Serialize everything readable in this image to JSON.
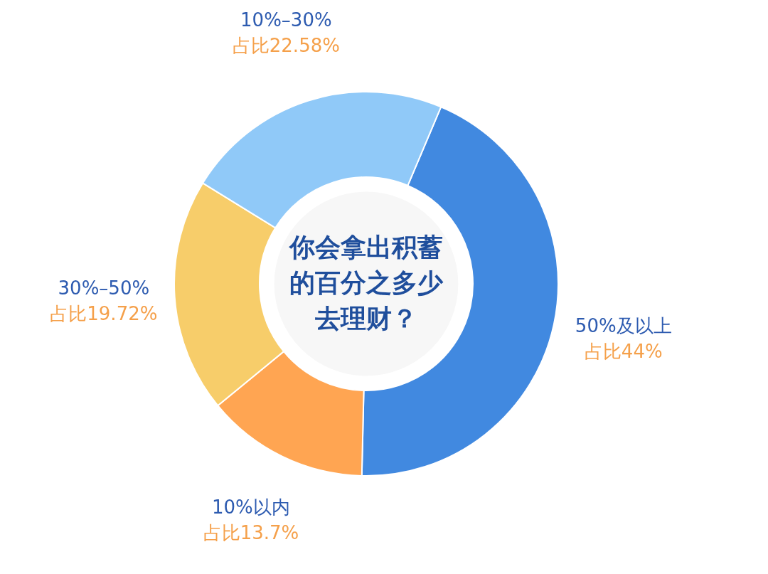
{
  "chart_data": {
    "type": "donut",
    "title": "你会拿出积蓄的百分之多少去理财？",
    "categories": [
      "50%及以上",
      "10%以内",
      "30%–50%",
      "10%–30%"
    ],
    "values": [
      44,
      13.7,
      19.72,
      22.58
    ],
    "colors": [
      "#4189e0",
      "#ffa552",
      "#f7cd6a",
      "#90c9f8"
    ],
    "value_labels": [
      "占比44%",
      "占比13.7%",
      "占比19.72%",
      "占比22.58%"
    ]
  }
}
